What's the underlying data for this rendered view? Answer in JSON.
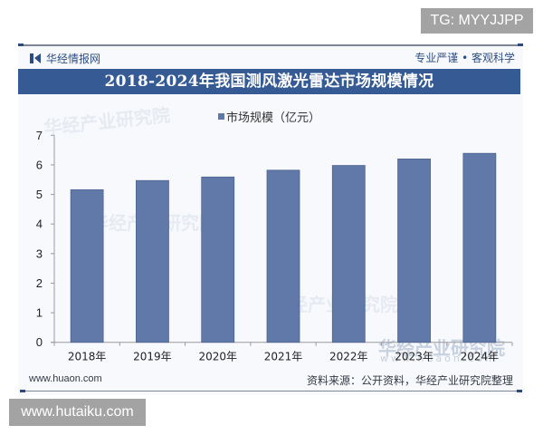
{
  "overlays": {
    "tg_badge": "TG: MYYJJPP",
    "site_badge": "www.hutaiku.com"
  },
  "header": {
    "brand_name": "华经情报网",
    "slogan": "专业严谨 • 客观科学"
  },
  "title": "2018-2024年我国测风激光雷达市场规模情况",
  "legend": {
    "label": "市场规模（亿元）",
    "color": "#6079a8"
  },
  "watermark": {
    "text": "华经产业研究院",
    "site": "www.huaon.com"
  },
  "footer": {
    "url": "www.huaon.com",
    "source": "资料来源：公开资料，华经产业研究院整理"
  },
  "colors": {
    "title_bar": "#365a93",
    "bar": "#6079a8",
    "brand": "#2c4d84"
  },
  "chart_data": {
    "type": "bar",
    "title": "2018-2024年我国测风激光雷达市场规模情况",
    "xlabel": "",
    "ylabel": "",
    "categories": [
      "2018年",
      "2019年",
      "2020年",
      "2021年",
      "2022年",
      "2023年",
      "2024年"
    ],
    "series": [
      {
        "name": "市场规模（亿元）",
        "values": [
          5.16,
          5.47,
          5.59,
          5.82,
          5.98,
          6.2,
          6.39
        ]
      }
    ],
    "ylim": [
      0,
      7
    ],
    "yticks": [
      0,
      1,
      2,
      3,
      4,
      5,
      6,
      7
    ],
    "grid": false,
    "legend_position": "top"
  }
}
